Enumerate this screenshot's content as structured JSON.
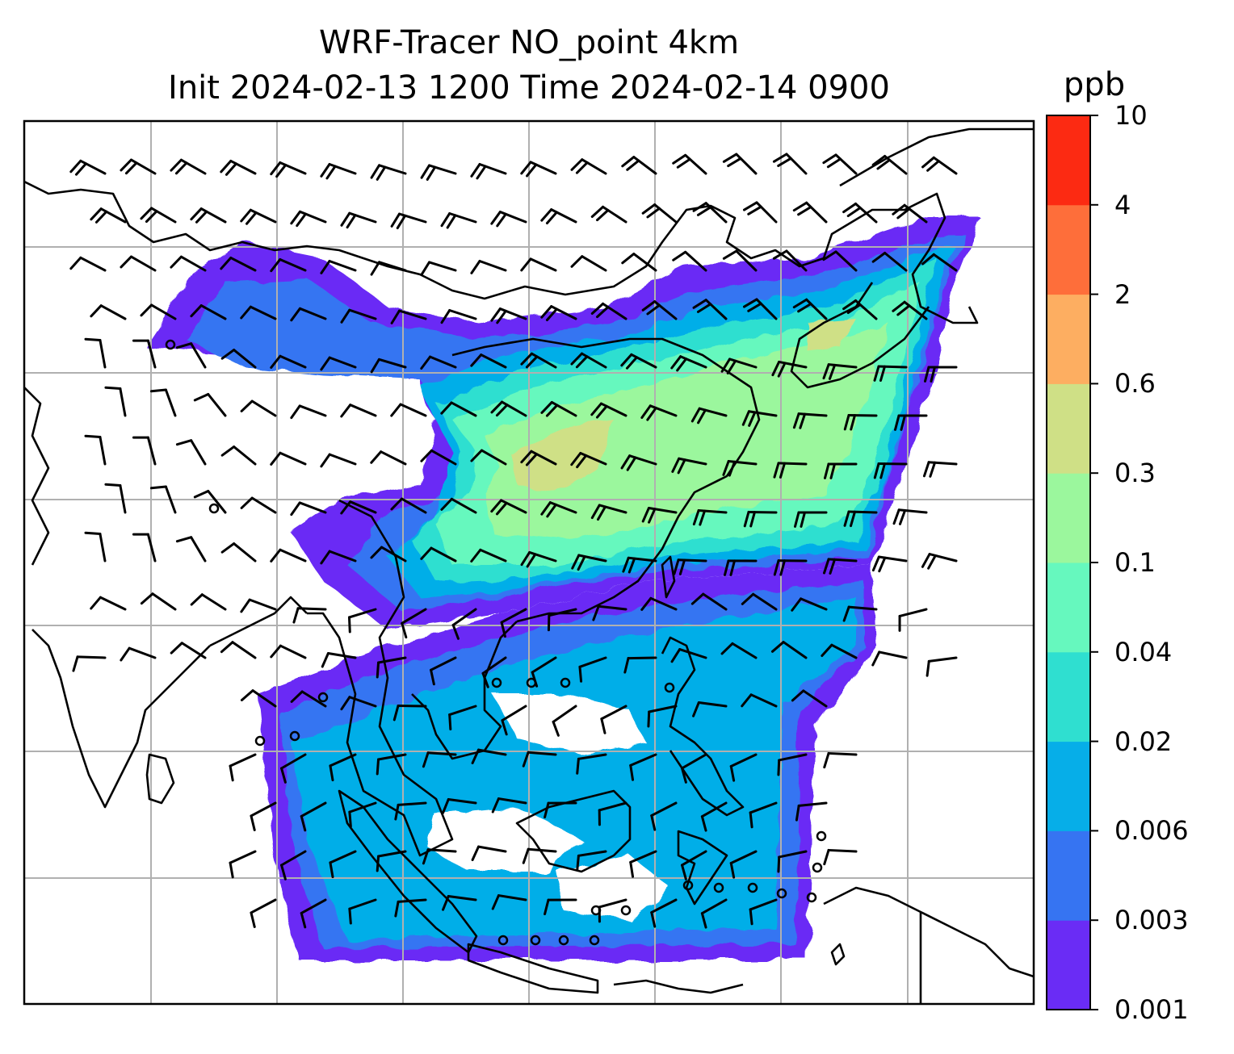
{
  "title": {
    "line1": "WRF-Tracer NO_point 4km",
    "line2": "Init 2024-02-13 1200 Time 2024-02-14 0900"
  },
  "colorbar": {
    "unit": "ppb",
    "ticks": [
      "0.001",
      "0.003",
      "0.006",
      "0.02",
      "0.04",
      "0.1",
      "0.3",
      "0.6",
      "2",
      "4",
      "10"
    ],
    "colors": [
      "#6a2cf5",
      "#3674f2",
      "#06aee8",
      "#2fdfd0",
      "#66f8be",
      "#9bf79d",
      "#cfe086",
      "#fdae61",
      "#fe6e3a",
      "#fc2a12"
    ]
  },
  "map": {
    "gridlines": true,
    "background": "#ffffff",
    "coastline_color": "#000000",
    "grid_color": "#b0b0b0",
    "barb_color": "#000000"
  }
}
